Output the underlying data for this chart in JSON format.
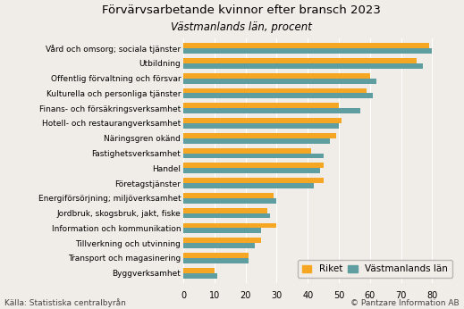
{
  "title": "Förvärvsarbetande kvinnor efter bransch 2023",
  "subtitle": "Västmanlands län, procent",
  "categories": [
    "Vård och omsorg; sociala tjänster",
    "Utbildning",
    "Offentlig förvaltning och försvar",
    "Kulturella och personliga tjänster",
    "Finans- och försäkringsverksamhet",
    "Hotell- och restaurangverksamhet",
    "Näringsgren okänd",
    "Fastighetsverksamhet",
    "Handel",
    "Företagstjänster",
    "Energiförsörjning; miljöverksamhet",
    "Jordbruk, skogsbruk, jakt, fiske",
    "Information och kommunikation",
    "Tillverkning och utvinning",
    "Transport och magasinering",
    "Byggverksamhet"
  ],
  "riket": [
    79,
    75,
    60,
    59,
    50,
    51,
    49,
    41,
    45,
    45,
    29,
    27,
    30,
    25,
    21,
    10
  ],
  "vastmanland": [
    80,
    77,
    62,
    61,
    57,
    50,
    47,
    45,
    44,
    42,
    30,
    28,
    25,
    23,
    21,
    11
  ],
  "color_riket": "#f5a623",
  "color_vastmanland": "#5f9ea0",
  "xlim": [
    0,
    88
  ],
  "xticks": [
    0,
    10,
    20,
    30,
    40,
    50,
    60,
    70,
    80
  ],
  "legend_riket": "Riket",
  "legend_vastmanland": "Västmanlands län",
  "footer_left": "Källa: Statistiska centralbyrån",
  "footer_right": "© Pantzare Information AB",
  "background_color": "#f0ede8",
  "grid_color": "#ffffff",
  "title_fontsize": 9.5,
  "subtitle_fontsize": 8.5,
  "label_fontsize": 6.5,
  "tick_fontsize": 7,
  "footer_fontsize": 6.5,
  "legend_fontsize": 7.5
}
